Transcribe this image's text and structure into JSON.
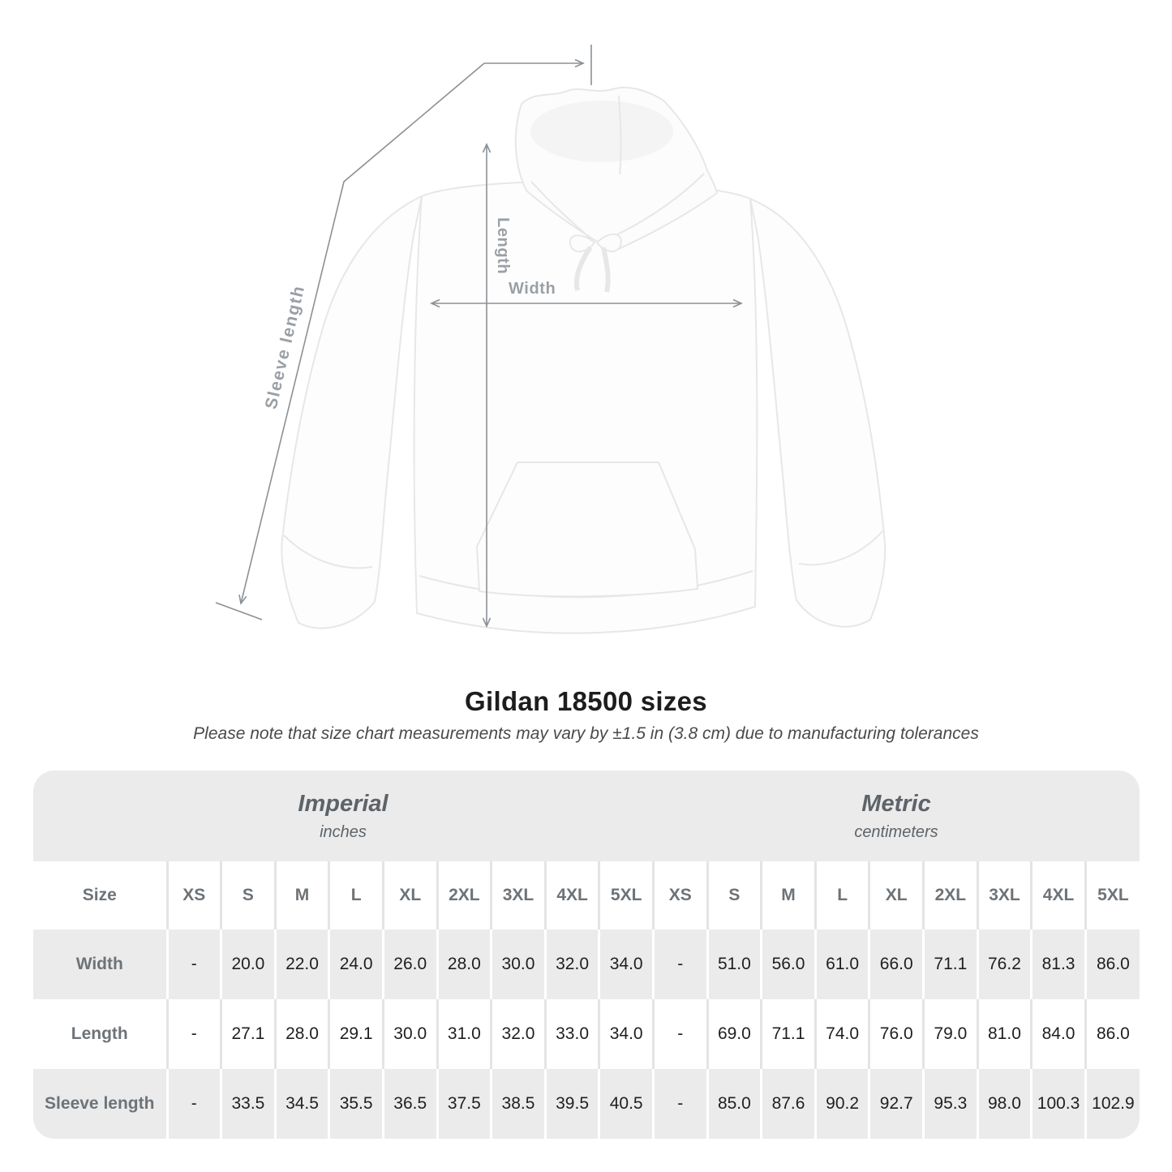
{
  "diagram": {
    "garment": "white-pullover-hoodie-front-view",
    "labels": {
      "length": "Length",
      "width": "Width",
      "sleeve": "Sleeve length"
    },
    "line_color": "#8b9196",
    "label_color": "#9aa0a5"
  },
  "heading": {
    "title": "Gildan 18500 sizes",
    "note": "Please note that size chart measurements may vary by ±1.5 in (3.8 cm) due to manufacturing tolerances"
  },
  "chart_data": {
    "type": "table",
    "title": "Gildan 18500 sizes",
    "corner_header": "Size",
    "sizes": [
      "XS",
      "S",
      "M",
      "L",
      "XL",
      "2XL",
      "3XL",
      "4XL",
      "5XL"
    ],
    "unit_groups": [
      {
        "title": "Imperial",
        "subtitle": "inches"
      },
      {
        "title": "Metric",
        "subtitle": "centimeters"
      }
    ],
    "rows": [
      {
        "label": "Width",
        "imperial": [
          "-",
          "20.0",
          "22.0",
          "24.0",
          "26.0",
          "28.0",
          "30.0",
          "32.0",
          "34.0"
        ],
        "metric": [
          "-",
          "51.0",
          "56.0",
          "61.0",
          "66.0",
          "71.1",
          "76.2",
          "81.3",
          "86.0"
        ]
      },
      {
        "label": "Length",
        "imperial": [
          "-",
          "27.1",
          "28.0",
          "29.1",
          "30.0",
          "31.0",
          "32.0",
          "33.0",
          "34.0"
        ],
        "metric": [
          "-",
          "69.0",
          "71.1",
          "74.0",
          "76.0",
          "79.0",
          "81.0",
          "84.0",
          "86.0"
        ]
      },
      {
        "label": "Sleeve length",
        "imperial": [
          "-",
          "33.5",
          "34.5",
          "35.5",
          "36.5",
          "37.5",
          "38.5",
          "39.5",
          "40.5"
        ],
        "metric": [
          "-",
          "85.0",
          "87.6",
          "90.2",
          "92.7",
          "95.3",
          "98.0",
          "100.3",
          "102.9"
        ]
      }
    ],
    "colors": {
      "band_bg": "#ebebeb",
      "alt_row_bg": "#ebebeb",
      "header_text": "#6d7378",
      "value_text": "#1f1f1f",
      "separator_on_white": "#e4e4e4",
      "separator_on_gray": "#ffffff"
    }
  }
}
